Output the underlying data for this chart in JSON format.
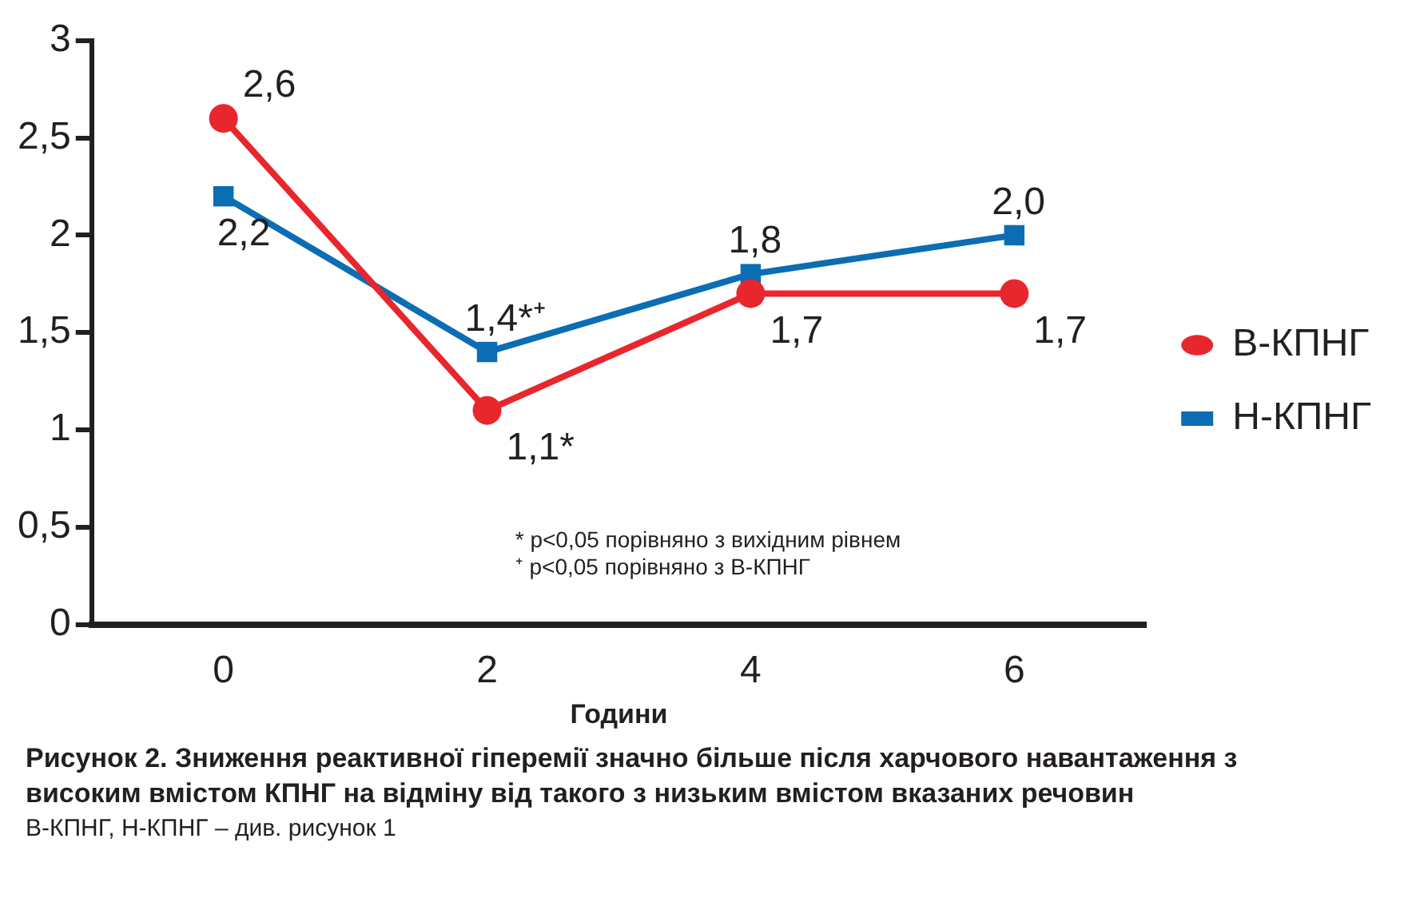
{
  "chart_data": {
    "type": "line",
    "title": "Рисунок 2. Зниження реактивної гіперемії значно більше після харчового навантаження з високим вмістом КПНГ на відміну від такого з низьким вмістом вказаних речовин",
    "xlabel": "Години",
    "categories": [
      "0",
      "2",
      "4",
      "6"
    ],
    "series": [
      {
        "name": "В-КПНГ",
        "color": "#e8262d",
        "marker": "circle",
        "values": [
          2.6,
          1.1,
          1.7,
          1.7
        ],
        "value_labels": [
          "2,6",
          "1,1*",
          "1,7",
          "1,7"
        ]
      },
      {
        "name": "Н-КПНГ",
        "color": "#0b6db3",
        "marker": "square",
        "values": [
          2.2,
          1.4,
          1.8,
          2.0
        ],
        "value_labels": [
          "2,2",
          "1,4*⁺",
          "1,8",
          "2,0"
        ]
      }
    ],
    "ylim": [
      0,
      3
    ],
    "yticks": [
      0,
      {
        "value": 0.5,
        "label": "0,5"
      },
      1,
      {
        "value": 1.5,
        "label": "1,5"
      },
      2,
      {
        "value": 2.5,
        "label": "2,5"
      },
      3
    ],
    "grid": false,
    "legend": "right",
    "annotations": [
      "* p<0,05 порівняно з вихідним рівнем",
      "⁺ p<0,05 порівняно з В-КПНГ",
      "В-КПНГ, Н-КПНГ – див. рисунок 1"
    ]
  }
}
